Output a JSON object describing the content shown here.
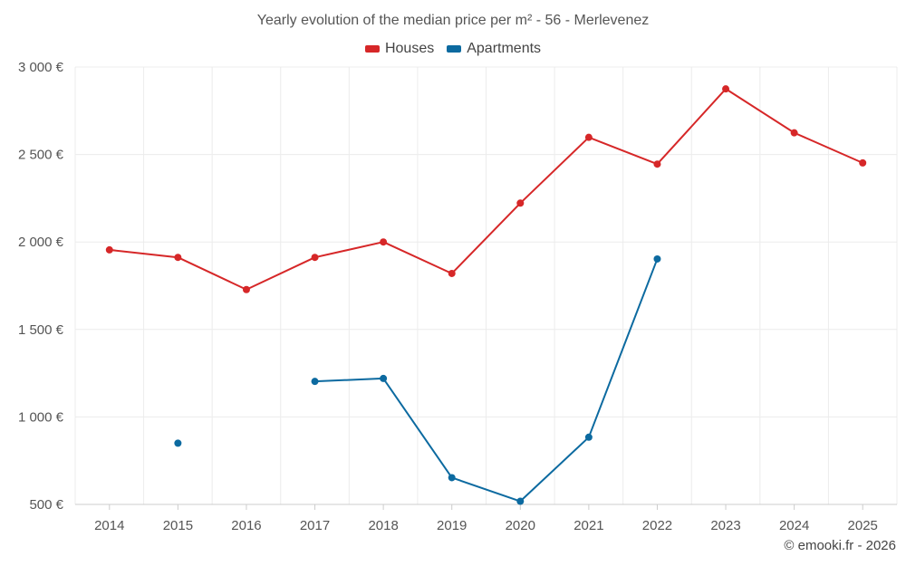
{
  "chart_data": {
    "type": "line",
    "title": "Yearly evolution of the median price per m² - 56 - Merlevenez",
    "categories": [
      "2014",
      "2015",
      "2016",
      "2017",
      "2018",
      "2019",
      "2020",
      "2021",
      "2022",
      "2023",
      "2024",
      "2025"
    ],
    "series": [
      {
        "name": "Houses",
        "color": "#d62728",
        "values": [
          1955,
          1912,
          1728,
          1912,
          2000,
          1820,
          2222,
          2598,
          2445,
          2875,
          2624,
          2452
        ]
      },
      {
        "name": "Apartments",
        "color": "#0c6aa0",
        "values": [
          null,
          850,
          null,
          1203,
          1220,
          653,
          518,
          884,
          1903,
          null,
          null,
          null
        ]
      }
    ],
    "ylim": [
      500,
      3000
    ],
    "yticks": [
      500,
      1000,
      1500,
      2000,
      2500,
      3000
    ],
    "ytick_labels": [
      "500 €",
      "1 000 €",
      "1 500 €",
      "2 000 €",
      "2 500 €",
      "3 000 €"
    ],
    "xlabel": "",
    "ylabel": "",
    "grid": true,
    "legend_position": "top-center"
  },
  "credit": "© emooki.fr - 2026"
}
